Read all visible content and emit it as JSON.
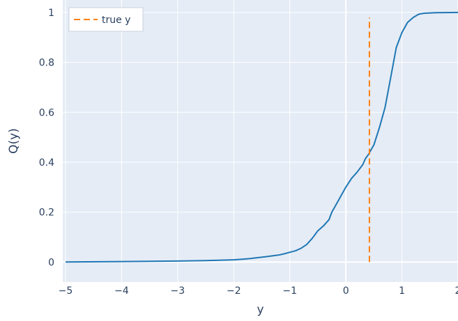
{
  "chart_data": {
    "type": "line",
    "xlabel": "y",
    "ylabel": "Q(y)",
    "xlim": [
      -5.05,
      2.0
    ],
    "ylim": [
      -0.08,
      1.05
    ],
    "x_ticks": [
      -5,
      -4,
      -3,
      -2,
      -1,
      0,
      1,
      2
    ],
    "x_tick_labels": [
      "−5",
      "−4",
      "−3",
      "−2",
      "−1",
      "0",
      "1",
      "2"
    ],
    "y_ticks": [
      0,
      0.2,
      0.4,
      0.6,
      0.8,
      1
    ],
    "y_tick_labels": [
      "0",
      "0.2",
      "0.4",
      "0.6",
      "0.8",
      "1"
    ],
    "grid": true,
    "legend_position": "top-left",
    "colors": {
      "plot_bg": "#e5ecf6",
      "grid": "#ffffff",
      "cdf_line": "#1f77b4",
      "true_line": "#ff7f0e"
    },
    "series": [
      {
        "type": "line",
        "x": [
          -5.0,
          -4.0,
          -3.0,
          -2.5,
          -2.0,
          -1.8,
          -1.7,
          -1.6,
          -1.4,
          -1.2,
          -1.1,
          -1.0,
          -0.9,
          -0.8,
          -0.7,
          -0.6,
          -0.5,
          -0.4,
          -0.3,
          -0.25,
          -0.2,
          -0.1,
          0.0,
          0.1,
          0.2,
          0.3,
          0.35,
          0.4,
          0.5,
          0.6,
          0.7,
          0.8,
          0.9,
          1.0,
          1.1,
          1.2,
          1.3,
          1.4,
          1.6,
          2.0
        ],
        "values": [
          0.0,
          0.002,
          0.004,
          0.006,
          0.009,
          0.012,
          0.014,
          0.017,
          0.022,
          0.028,
          0.033,
          0.039,
          0.045,
          0.055,
          0.07,
          0.095,
          0.125,
          0.145,
          0.17,
          0.2,
          0.22,
          0.26,
          0.3,
          0.335,
          0.36,
          0.39,
          0.415,
          0.43,
          0.47,
          0.54,
          0.62,
          0.74,
          0.86,
          0.92,
          0.96,
          0.98,
          0.993,
          0.997,
          0.999,
          1.0
        ]
      },
      {
        "name": "true y",
        "type": "vline",
        "x": [
          0.42,
          0.42
        ],
        "values": [
          0.0,
          0.98
        ]
      }
    ]
  }
}
